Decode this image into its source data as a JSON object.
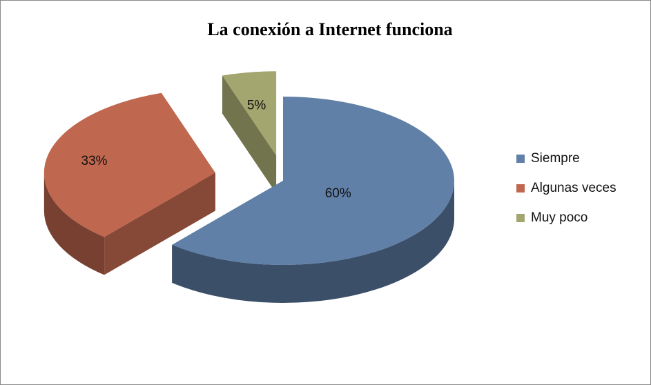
{
  "chart_data": {
    "type": "pie",
    "title": "La conexión a Internet funciona",
    "categories": [
      "Siempre",
      "Algunas veces",
      "Muy poco"
    ],
    "values": [
      60,
      33,
      5
    ],
    "value_labels": [
      "60%",
      "33%",
      "5%"
    ],
    "colors": [
      "#6180a8",
      "#c0674f",
      "#a3a66f"
    ],
    "legend": "right"
  }
}
